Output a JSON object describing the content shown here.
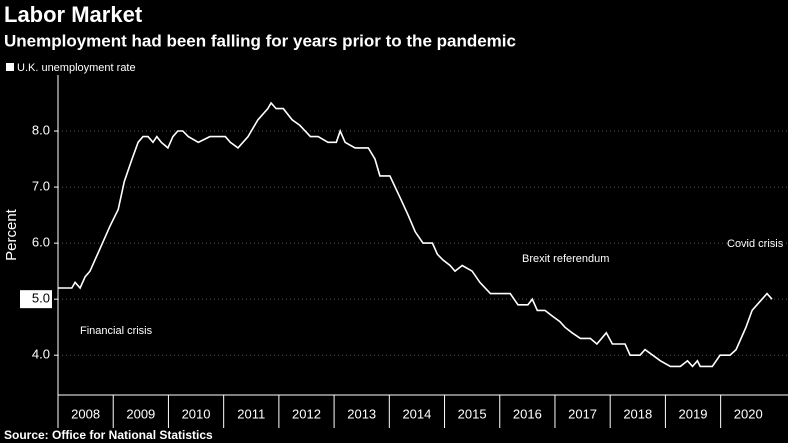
{
  "chart_data": {
    "type": "line",
    "title": "Labor Market",
    "subtitle": "Unemployment had been falling for years prior to the pandemic",
    "y_label": "Percent",
    "source": "Source: Office for National Statistics",
    "annotations": [
      "Financial crisis",
      "Brexit referendum",
      "Covid crisis"
    ],
    "series": [
      {
        "name": "U.K. unemployment rate",
        "color": "#ffffff",
        "x": [
          2008.0,
          2008.25,
          2008.31,
          2008.4,
          2008.49,
          2008.58,
          2008.76,
          2008.94,
          2009.09,
          2009.2,
          2009.34,
          2009.45,
          2009.54,
          2009.63,
          2009.72,
          2009.79,
          2009.87,
          2009.99,
          2010.08,
          2010.17,
          2010.26,
          2010.36,
          2010.54,
          2010.75,
          2011.03,
          2011.12,
          2011.26,
          2011.44,
          2011.62,
          2011.8,
          2011.86,
          2011.95,
          2012.08,
          2012.24,
          2012.38,
          2012.57,
          2012.71,
          2012.89,
          2013.04,
          2013.11,
          2013.2,
          2013.38,
          2013.62,
          2013.74,
          2013.83,
          2014.01,
          2014.2,
          2014.34,
          2014.47,
          2014.61,
          2014.78,
          2014.87,
          2014.97,
          2015.1,
          2015.19,
          2015.32,
          2015.5,
          2015.64,
          2015.83,
          2016.19,
          2016.33,
          2016.51,
          2016.59,
          2016.68,
          2016.82,
          2016.95,
          2017.09,
          2017.18,
          2017.31,
          2017.46,
          2017.64,
          2017.76,
          2017.93,
          2018.04,
          2018.27,
          2018.36,
          2018.54,
          2018.63,
          2018.91,
          2019.09,
          2019.27,
          2019.4,
          2019.49,
          2019.58,
          2019.63,
          2019.85,
          2019.99,
          2020.17,
          2020.28,
          2020.46,
          2020.57,
          2020.75,
          2020.84,
          2020.93
        ],
        "values": [
          5.2,
          5.2,
          5.3,
          5.2,
          5.4,
          5.5,
          5.9,
          6.3,
          6.6,
          7.1,
          7.5,
          7.8,
          7.9,
          7.9,
          7.8,
          7.9,
          7.8,
          7.7,
          7.9,
          8.0,
          8.0,
          7.9,
          7.8,
          7.9,
          7.9,
          7.8,
          7.7,
          7.9,
          8.2,
          8.4,
          8.5,
          8.4,
          8.4,
          8.2,
          8.1,
          7.9,
          7.9,
          7.8,
          7.8,
          8.0,
          7.8,
          7.7,
          7.7,
          7.5,
          7.2,
          7.2,
          6.8,
          6.5,
          6.2,
          6.0,
          6.0,
          5.8,
          5.7,
          5.6,
          5.5,
          5.6,
          5.5,
          5.3,
          5.1,
          5.1,
          4.9,
          4.9,
          5.0,
          4.8,
          4.8,
          4.7,
          4.6,
          4.5,
          4.4,
          4.3,
          4.3,
          4.2,
          4.4,
          4.2,
          4.2,
          4.0,
          4.0,
          4.1,
          3.9,
          3.8,
          3.8,
          3.9,
          3.8,
          3.9,
          3.8,
          3.8,
          4.0,
          4.0,
          4.1,
          4.5,
          4.8,
          5.0,
          5.1,
          5.0
        ]
      }
    ],
    "xlim": [
      2008,
      2021.22
    ],
    "xticks": [
      2008,
      2009,
      2010,
      2011,
      2012,
      2013,
      2014,
      2015,
      2016,
      2017,
      2018,
      2019,
      2020
    ],
    "ylim": [
      3.29,
      9.0
    ],
    "yticks": [
      {
        "value": 4,
        "label": "4.0"
      },
      {
        "value": 5,
        "label": "5.0"
      },
      {
        "value": 6,
        "label": "6.0"
      },
      {
        "value": 7,
        "label": "7.0"
      },
      {
        "value": 8,
        "label": "8.0"
      }
    ],
    "highlight_ytick": 5,
    "grid": true
  }
}
